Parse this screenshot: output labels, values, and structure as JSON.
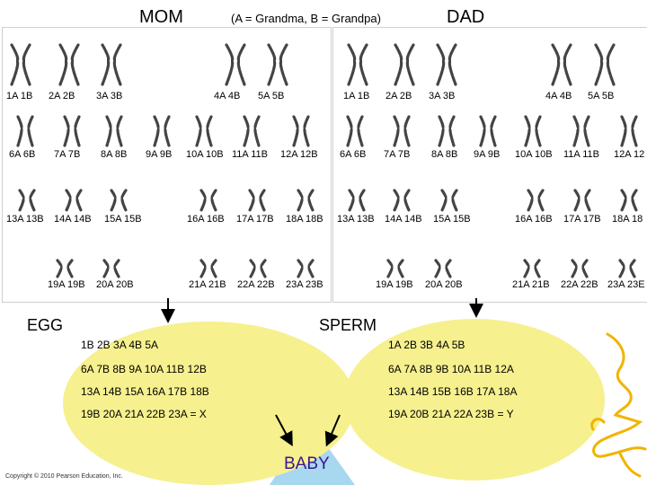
{
  "header": {
    "mom_title": "MOM",
    "legend_note": "(A = Grandma, B = Grandpa)",
    "dad_title": "DAD"
  },
  "mom_karyotype": {
    "row_labels": [
      [
        "1A 1B",
        "2A 2B",
        "3A 3B",
        "4A 4B",
        "5A 5B"
      ],
      [
        "6A 6B",
        "7A 7B",
        "8A 8B",
        "9A 9B",
        "10A 10B",
        "11A 11B",
        "12A 12B"
      ],
      [
        "13A 13B",
        "14A 14B",
        "15A 15B",
        "16A 16B",
        "17A 17B",
        "18A 18B"
      ],
      [
        "19A 19B",
        "20A 20B",
        "21A 21B",
        "22A 22B",
        "23A 23B"
      ]
    ]
  },
  "dad_karyotype": {
    "row_labels": [
      [
        "1A 1B",
        "2A 2B",
        "3A 3B",
        "4A 4B",
        "5A 5B"
      ],
      [
        "6A 6B",
        "7A 7B",
        "8A 8B",
        "9A 9B",
        "10A 10B",
        "11A 11B",
        "12A 12"
      ],
      [
        "13A 13B",
        "14A 14B",
        "15A 15B",
        "16A 16B",
        "17A 17B",
        "18A 18"
      ],
      [
        "19A 19B",
        "20A 20B",
        "21A 21B",
        "22A 22B",
        "23A 23E"
      ]
    ]
  },
  "egg": {
    "label": "EGG",
    "lines": [
      "1B  2B  3A  4B  5A",
      "6A 7B 8B 9A 10A 11B 12B",
      "13A 14B 15A 16A 17B 18B",
      "19B 20A 21A 22B   23A = X"
    ]
  },
  "sperm": {
    "label": "SPERM",
    "lines": [
      "1A 2B 3B 4A 5B",
      "6A 7A 8B 9B 10A 11B 12A",
      "13A 14B 15B 16B 17A 18A",
      "19A 20B 21A 22A      23B = Y"
    ]
  },
  "baby": {
    "label": "BABY"
  },
  "footer": {
    "copyright": "Copyright © 2010 Pearson Education, Inc."
  },
  "colors": {
    "egg_fill": "#f6f08e",
    "sperm_fill": "#f6f08e",
    "baby_fill": "#a8d8f0",
    "baby_text": "#3a168f",
    "scribble": "#f2b400"
  }
}
